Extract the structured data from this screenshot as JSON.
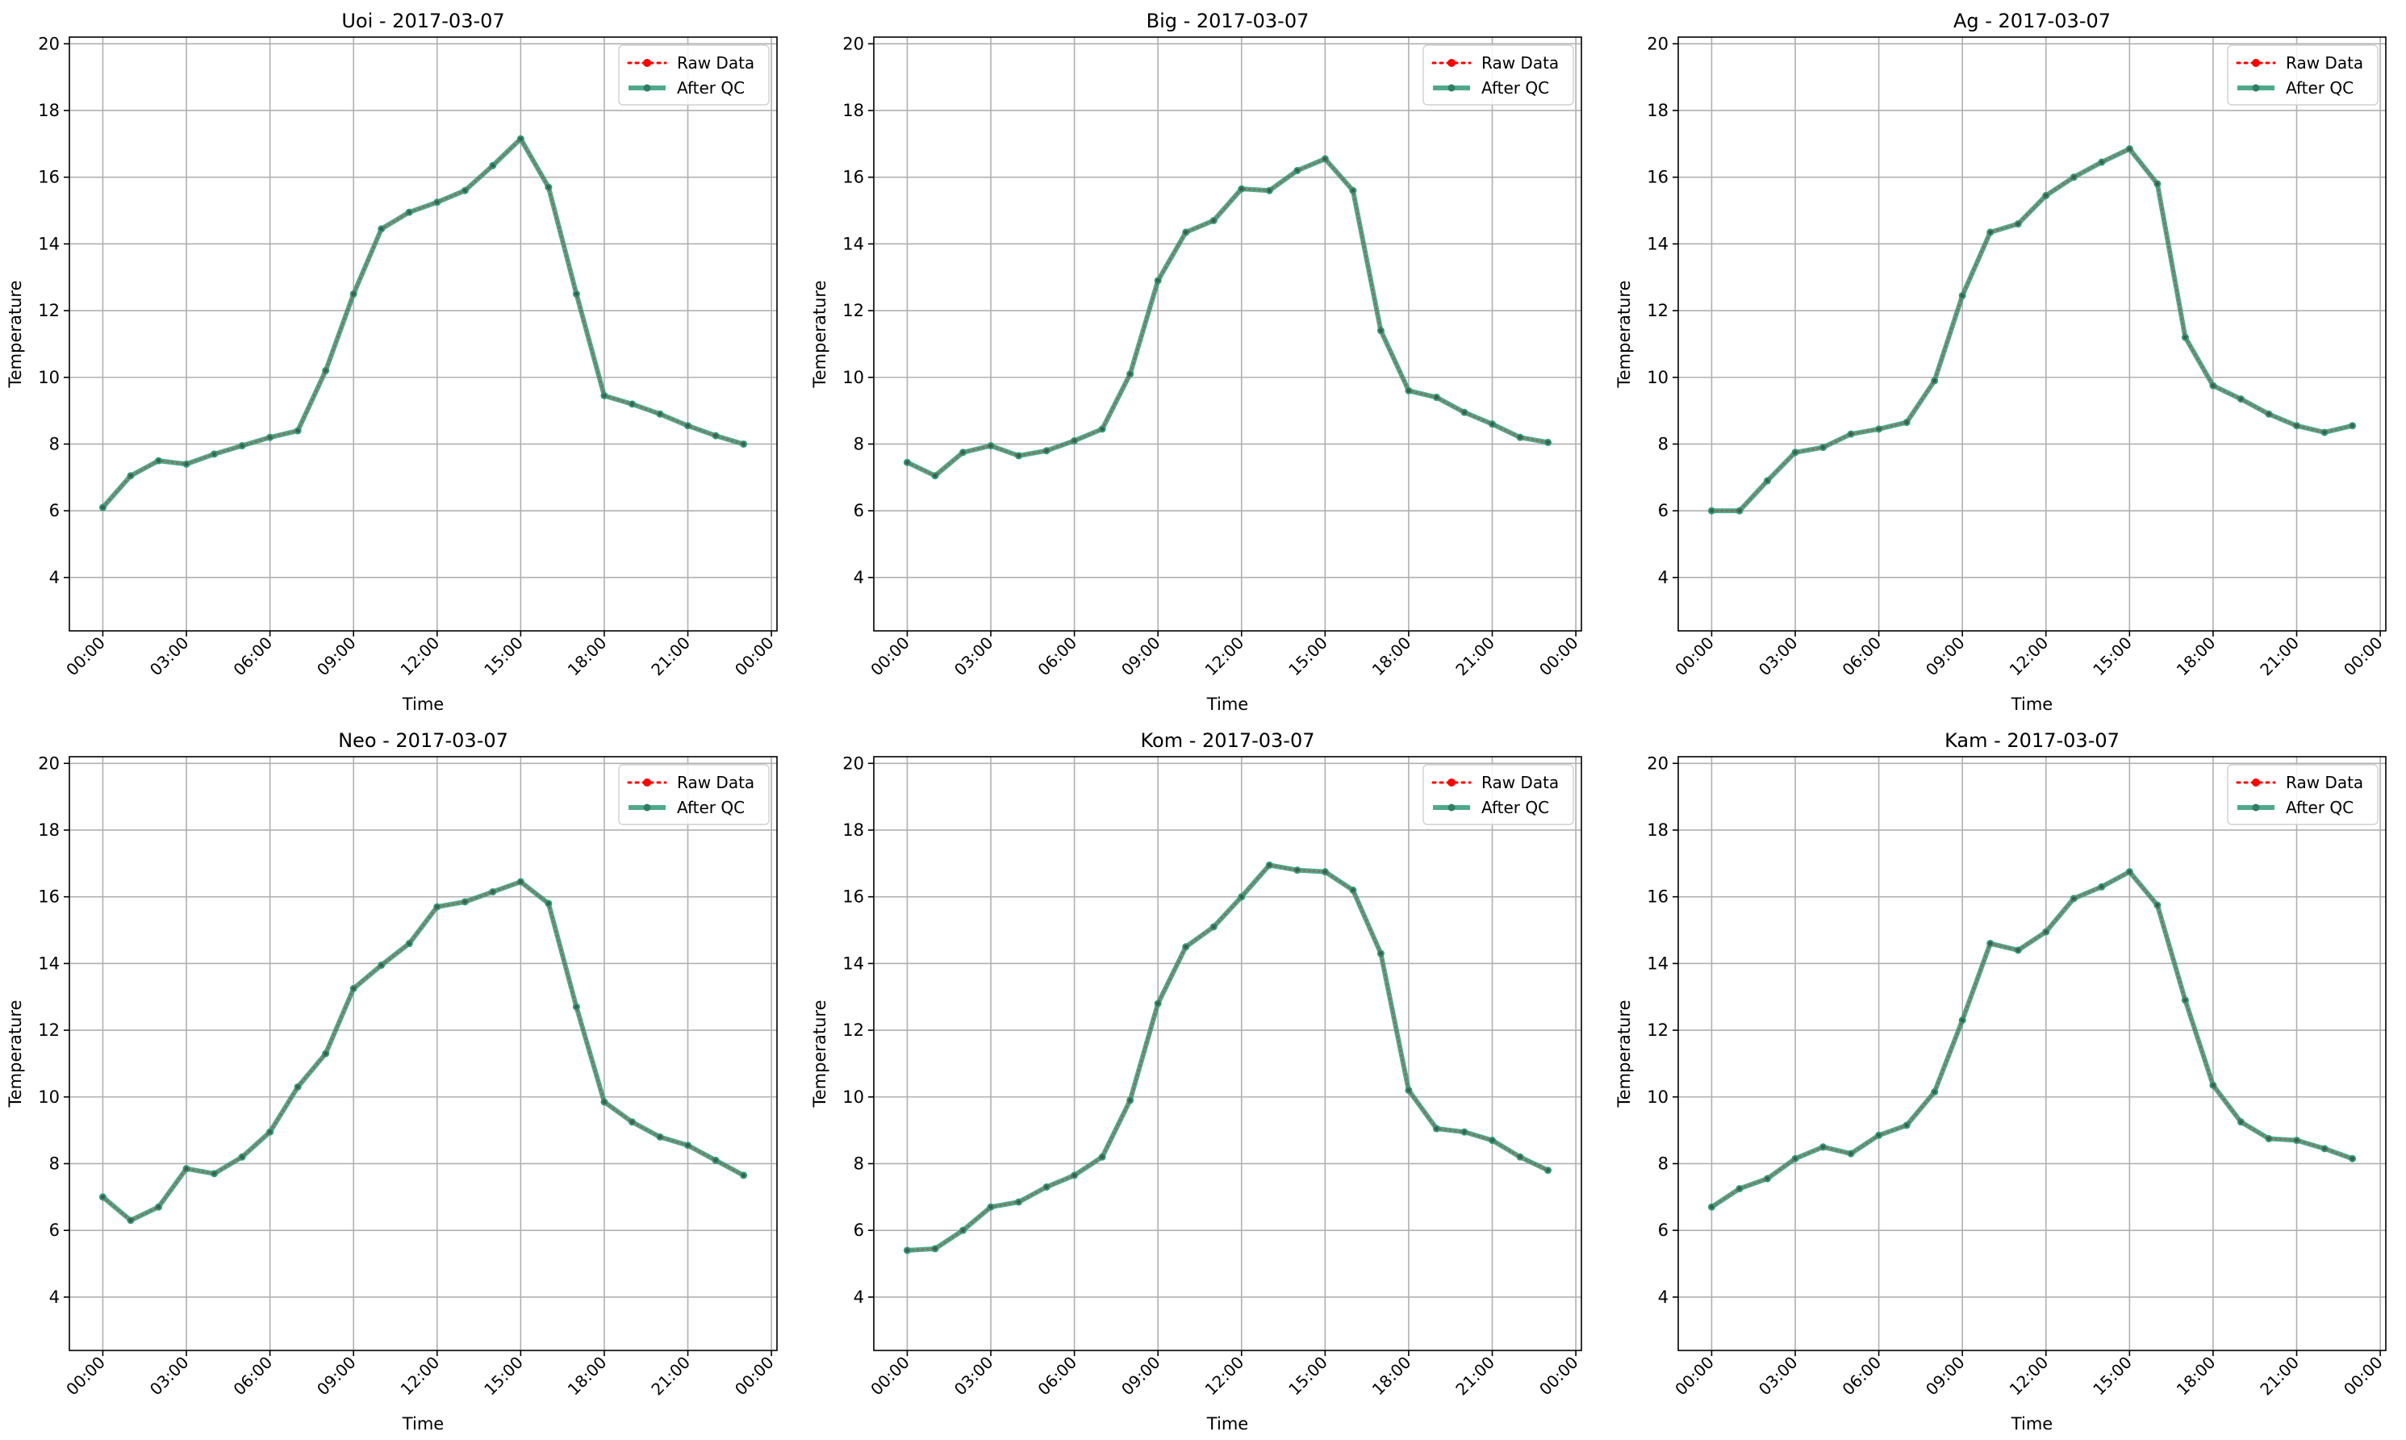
{
  "legend_labels": {
    "raw": "Raw Data",
    "qc": "After QC"
  },
  "colors": {
    "raw": "#ff0000",
    "qc": "#2f9a78",
    "grid": "#b0b0b0",
    "axis": "#000000"
  },
  "chart_data": [
    {
      "type": "line",
      "title": "Uoi - 2017-03-07",
      "xlabel": "Time",
      "ylabel": "Temperature",
      "xlim": [
        -1.2,
        24.2
      ],
      "ylim": [
        2.4,
        20.2
      ],
      "x_ticks": [
        0,
        3,
        6,
        9,
        12,
        15,
        18,
        21,
        24
      ],
      "x_tick_labels": [
        "00:00",
        "03:00",
        "06:00",
        "09:00",
        "12:00",
        "15:00",
        "18:00",
        "21:00",
        "00:00"
      ],
      "y_ticks": [
        4,
        6,
        8,
        10,
        12,
        14,
        16,
        18,
        20
      ],
      "y_tick_labels": [
        "4",
        "6",
        "8",
        "10",
        "12",
        "14",
        "16",
        "18",
        "20"
      ],
      "grid": true,
      "legend_position": "upper right",
      "x": [
        0,
        1,
        2,
        3,
        4,
        5,
        6,
        7,
        8,
        9,
        10,
        11,
        12,
        13,
        14,
        15,
        16,
        17,
        18,
        19,
        20,
        21,
        22,
        23
      ],
      "series": [
        {
          "name": "Raw Data",
          "values": [
            6.1,
            7.05,
            7.5,
            7.4,
            7.7,
            7.95,
            8.2,
            8.4,
            10.2,
            12.5,
            14.45,
            14.95,
            15.25,
            15.6,
            16.35,
            17.15,
            15.7,
            12.5,
            9.45,
            9.2,
            8.9,
            8.55,
            8.25,
            8.0
          ]
        },
        {
          "name": "After QC",
          "values": [
            6.1,
            7.05,
            7.5,
            7.4,
            7.7,
            7.95,
            8.2,
            8.4,
            10.2,
            12.5,
            14.45,
            14.95,
            15.25,
            15.6,
            16.35,
            17.15,
            15.7,
            12.5,
            9.45,
            9.2,
            8.9,
            8.55,
            8.25,
            8.0
          ]
        }
      ]
    },
    {
      "type": "line",
      "title": "Big - 2017-03-07",
      "xlabel": "Time",
      "ylabel": "Temperature",
      "xlim": [
        -1.2,
        24.2
      ],
      "ylim": [
        2.4,
        20.2
      ],
      "x_ticks": [
        0,
        3,
        6,
        9,
        12,
        15,
        18,
        21,
        24
      ],
      "x_tick_labels": [
        "00:00",
        "03:00",
        "06:00",
        "09:00",
        "12:00",
        "15:00",
        "18:00",
        "21:00",
        "00:00"
      ],
      "y_ticks": [
        4,
        6,
        8,
        10,
        12,
        14,
        16,
        18,
        20
      ],
      "y_tick_labels": [
        "4",
        "6",
        "8",
        "10",
        "12",
        "14",
        "16",
        "18",
        "20"
      ],
      "grid": true,
      "legend_position": "upper right",
      "x": [
        0,
        1,
        2,
        3,
        4,
        5,
        6,
        7,
        8,
        9,
        10,
        11,
        12,
        13,
        14,
        15,
        16,
        17,
        18,
        19,
        20,
        21,
        22,
        23
      ],
      "series": [
        {
          "name": "Raw Data",
          "values": [
            7.45,
            7.05,
            7.75,
            7.95,
            7.65,
            7.8,
            8.1,
            8.45,
            10.1,
            12.9,
            14.35,
            14.7,
            15.65,
            15.6,
            16.2,
            16.55,
            15.6,
            11.4,
            9.6,
            9.4,
            8.95,
            8.6,
            8.2,
            8.05
          ]
        },
        {
          "name": "After QC",
          "values": [
            7.45,
            7.05,
            7.75,
            7.95,
            7.65,
            7.8,
            8.1,
            8.45,
            10.1,
            12.9,
            14.35,
            14.7,
            15.65,
            15.6,
            16.2,
            16.55,
            15.6,
            11.4,
            9.6,
            9.4,
            8.95,
            8.6,
            8.2,
            8.05
          ]
        }
      ]
    },
    {
      "type": "line",
      "title": "Ag - 2017-03-07",
      "xlabel": "Time",
      "ylabel": "Temperature",
      "xlim": [
        -1.2,
        24.2
      ],
      "ylim": [
        2.4,
        20.2
      ],
      "x_ticks": [
        0,
        3,
        6,
        9,
        12,
        15,
        18,
        21,
        24
      ],
      "x_tick_labels": [
        "00:00",
        "03:00",
        "06:00",
        "09:00",
        "12:00",
        "15:00",
        "18:00",
        "21:00",
        "00:00"
      ],
      "y_ticks": [
        4,
        6,
        8,
        10,
        12,
        14,
        16,
        18,
        20
      ],
      "y_tick_labels": [
        "4",
        "6",
        "8",
        "10",
        "12",
        "14",
        "16",
        "18",
        "20"
      ],
      "grid": true,
      "legend_position": "upper right",
      "x": [
        0,
        1,
        2,
        3,
        4,
        5,
        6,
        7,
        8,
        9,
        10,
        11,
        12,
        13,
        14,
        15,
        16,
        17,
        18,
        19,
        20,
        21,
        22,
        23
      ],
      "series": [
        {
          "name": "Raw Data",
          "values": [
            6.0,
            6.0,
            6.9,
            7.75,
            7.9,
            8.3,
            8.45,
            8.65,
            9.9,
            12.45,
            14.35,
            14.6,
            15.45,
            16.0,
            16.45,
            16.85,
            15.8,
            11.2,
            9.75,
            9.35,
            8.9,
            8.55,
            8.35,
            8.55
          ]
        },
        {
          "name": "After QC",
          "values": [
            6.0,
            6.0,
            6.9,
            7.75,
            7.9,
            8.3,
            8.45,
            8.65,
            9.9,
            12.45,
            14.35,
            14.6,
            15.45,
            16.0,
            16.45,
            16.85,
            15.8,
            11.2,
            9.75,
            9.35,
            8.9,
            8.55,
            8.35,
            8.55
          ]
        }
      ]
    },
    {
      "type": "line",
      "title": "Neo - 2017-03-07",
      "xlabel": "Time",
      "ylabel": "Temperature",
      "xlim": [
        -1.2,
        24.2
      ],
      "ylim": [
        2.4,
        20.2
      ],
      "x_ticks": [
        0,
        3,
        6,
        9,
        12,
        15,
        18,
        21,
        24
      ],
      "x_tick_labels": [
        "00:00",
        "03:00",
        "06:00",
        "09:00",
        "12:00",
        "15:00",
        "18:00",
        "21:00",
        "00:00"
      ],
      "y_ticks": [
        4,
        6,
        8,
        10,
        12,
        14,
        16,
        18,
        20
      ],
      "y_tick_labels": [
        "4",
        "6",
        "8",
        "10",
        "12",
        "14",
        "16",
        "18",
        "20"
      ],
      "grid": true,
      "legend_position": "upper right",
      "x": [
        0,
        1,
        2,
        3,
        4,
        5,
        6,
        7,
        8,
        9,
        10,
        11,
        12,
        13,
        14,
        15,
        16,
        17,
        18,
        19,
        20,
        21,
        22,
        23
      ],
      "series": [
        {
          "name": "Raw Data",
          "values": [
            7.0,
            6.3,
            6.7,
            7.85,
            7.7,
            8.2,
            8.95,
            10.3,
            11.3,
            13.25,
            13.95,
            14.6,
            15.7,
            15.85,
            16.15,
            16.45,
            15.8,
            12.7,
            9.85,
            9.25,
            8.8,
            8.55,
            8.1,
            7.65
          ]
        },
        {
          "name": "After QC",
          "values": [
            7.0,
            6.3,
            6.7,
            7.85,
            7.7,
            8.2,
            8.95,
            10.3,
            11.3,
            13.25,
            13.95,
            14.6,
            15.7,
            15.85,
            16.15,
            16.45,
            15.8,
            12.7,
            9.85,
            9.25,
            8.8,
            8.55,
            8.1,
            7.65
          ]
        }
      ]
    },
    {
      "type": "line",
      "title": "Kom - 2017-03-07",
      "xlabel": "Time",
      "ylabel": "Temperature",
      "xlim": [
        -1.2,
        24.2
      ],
      "ylim": [
        2.4,
        20.2
      ],
      "x_ticks": [
        0,
        3,
        6,
        9,
        12,
        15,
        18,
        21,
        24
      ],
      "x_tick_labels": [
        "00:00",
        "03:00",
        "06:00",
        "09:00",
        "12:00",
        "15:00",
        "18:00",
        "21:00",
        "00:00"
      ],
      "y_ticks": [
        4,
        6,
        8,
        10,
        12,
        14,
        16,
        18,
        20
      ],
      "y_tick_labels": [
        "4",
        "6",
        "8",
        "10",
        "12",
        "14",
        "16",
        "18",
        "20"
      ],
      "grid": true,
      "legend_position": "upper right",
      "x": [
        0,
        1,
        2,
        3,
        4,
        5,
        6,
        7,
        8,
        9,
        10,
        11,
        12,
        13,
        14,
        15,
        16,
        17,
        18,
        19,
        20,
        21,
        22,
        23
      ],
      "series": [
        {
          "name": "Raw Data",
          "values": [
            5.4,
            5.45,
            6.0,
            6.7,
            6.85,
            7.3,
            7.65,
            8.2,
            9.9,
            12.8,
            14.5,
            15.1,
            16.0,
            16.95,
            16.8,
            16.75,
            16.2,
            14.3,
            10.2,
            9.05,
            8.95,
            8.7,
            8.2,
            7.8
          ]
        },
        {
          "name": "After QC",
          "values": [
            5.4,
            5.45,
            6.0,
            6.7,
            6.85,
            7.3,
            7.65,
            8.2,
            9.9,
            12.8,
            14.5,
            15.1,
            16.0,
            16.95,
            16.8,
            16.75,
            16.2,
            14.3,
            10.2,
            9.05,
            8.95,
            8.7,
            8.2,
            7.8
          ]
        }
      ]
    },
    {
      "type": "line",
      "title": "Kam - 2017-03-07",
      "xlabel": "Time",
      "ylabel": "Temperature",
      "xlim": [
        -1.2,
        24.2
      ],
      "ylim": [
        2.4,
        20.2
      ],
      "x_ticks": [
        0,
        3,
        6,
        9,
        12,
        15,
        18,
        21,
        24
      ],
      "x_tick_labels": [
        "00:00",
        "03:00",
        "06:00",
        "09:00",
        "12:00",
        "15:00",
        "18:00",
        "21:00",
        "00:00"
      ],
      "y_ticks": [
        4,
        6,
        8,
        10,
        12,
        14,
        16,
        18,
        20
      ],
      "y_tick_labels": [
        "4",
        "6",
        "8",
        "10",
        "12",
        "14",
        "16",
        "18",
        "20"
      ],
      "grid": true,
      "legend_position": "upper right",
      "x": [
        0,
        1,
        2,
        3,
        4,
        5,
        6,
        7,
        8,
        9,
        10,
        11,
        12,
        13,
        14,
        15,
        16,
        17,
        18,
        19,
        20,
        21,
        22,
        23
      ],
      "series": [
        {
          "name": "Raw Data",
          "values": [
            6.7,
            7.25,
            7.55,
            8.15,
            8.5,
            8.3,
            8.85,
            9.15,
            10.15,
            12.3,
            14.6,
            14.4,
            14.95,
            15.95,
            16.3,
            16.75,
            15.75,
            12.9,
            10.35,
            9.25,
            8.75,
            8.7,
            8.45,
            8.15
          ]
        },
        {
          "name": "After QC",
          "values": [
            6.7,
            7.25,
            7.55,
            8.15,
            8.5,
            8.3,
            8.85,
            9.15,
            10.15,
            12.3,
            14.6,
            14.4,
            14.95,
            15.95,
            16.3,
            16.75,
            15.75,
            12.9,
            10.35,
            9.25,
            8.75,
            8.7,
            8.45,
            8.15
          ]
        }
      ]
    }
  ]
}
